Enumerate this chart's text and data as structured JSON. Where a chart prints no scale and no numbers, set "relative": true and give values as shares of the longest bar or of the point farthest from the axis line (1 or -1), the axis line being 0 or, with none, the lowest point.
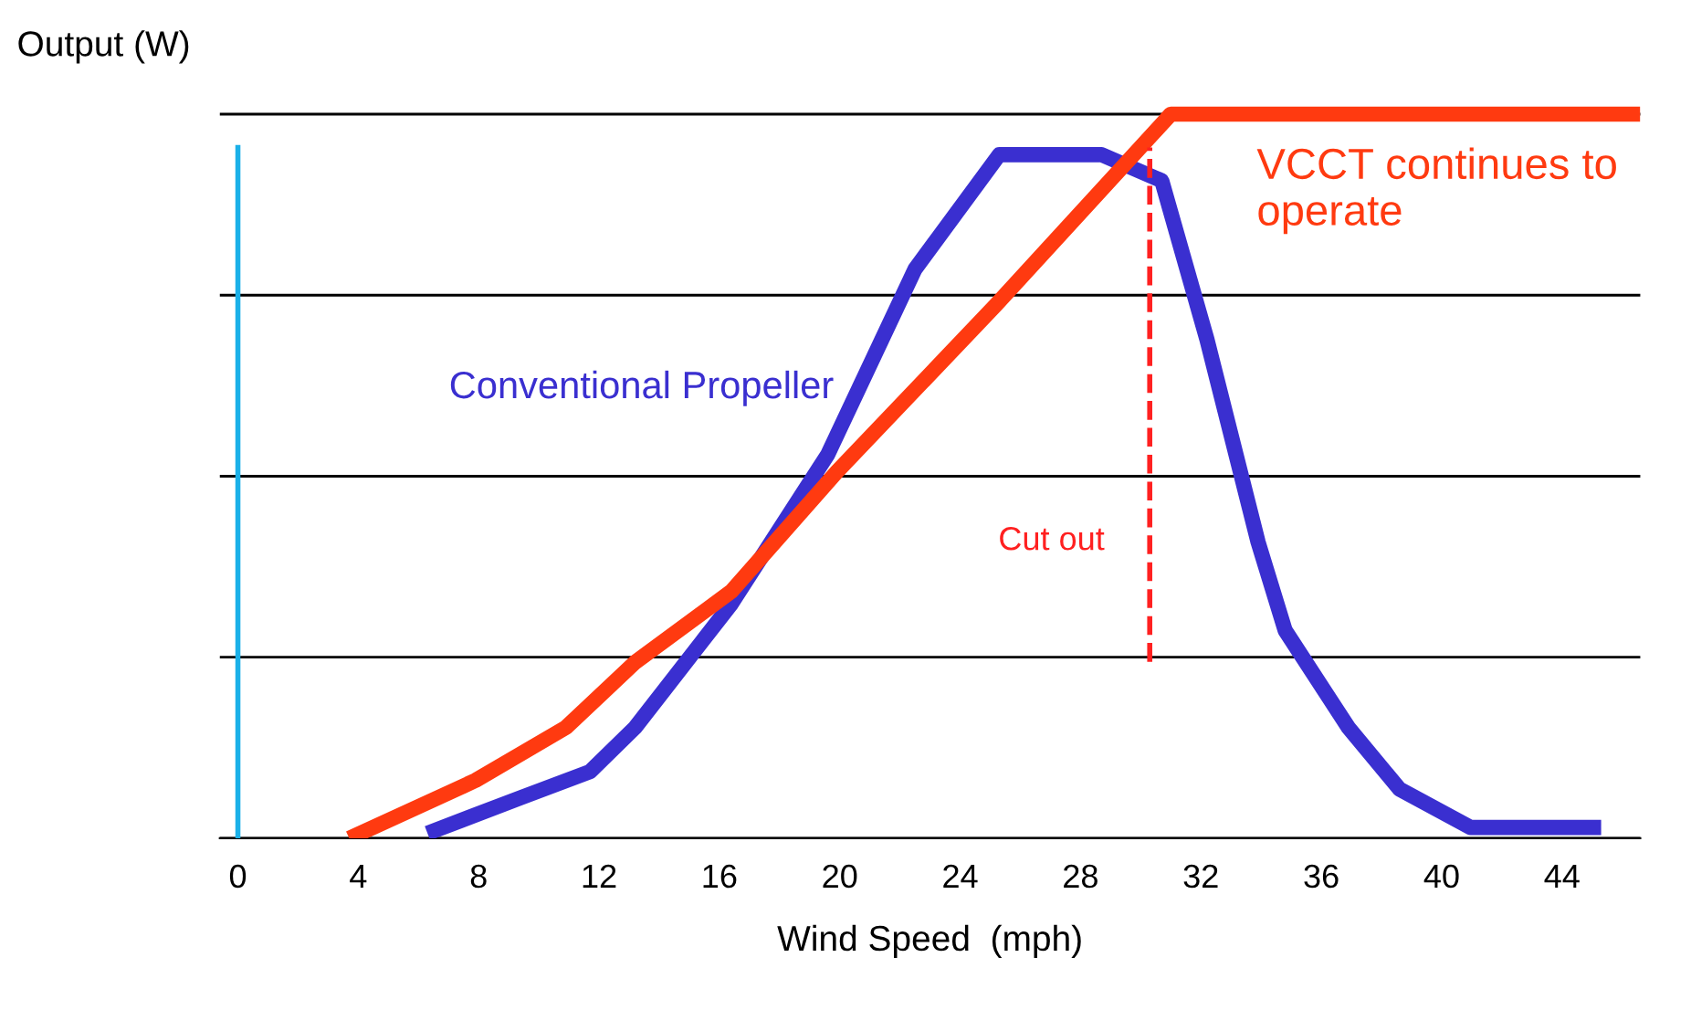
{
  "chart_data": {
    "type": "line",
    "relative": true,
    "xlabel": "Wind Speed  (mph)",
    "ylabel": "Output (W)",
    "xlim": [
      -0.6,
      46.6
    ],
    "xticks": [
      0,
      4,
      8,
      12,
      16,
      20,
      24,
      28,
      32,
      36,
      40,
      44
    ],
    "series": [
      {
        "name": "Conventional Propeller",
        "color": "#3a2fd0",
        "x": [
          6.3,
          9.4,
          11.7,
          13.2,
          16.4,
          19.6,
          22.5,
          25.3,
          28.7,
          30.7,
          32.2,
          33.9,
          34.8,
          36.9,
          38.6,
          40.96,
          45.3
        ],
        "values": [
          0.007,
          0.056,
          0.092,
          0.153,
          0.324,
          0.53,
          0.786,
          0.944,
          0.944,
          0.908,
          0.689,
          0.409,
          0.287,
          0.153,
          0.068,
          0.015,
          0.015
        ]
      },
      {
        "color": "#ff3a10",
        "x": [
          3.7,
          7.9,
          10.9,
          13.2,
          16.4,
          19.9,
          25.2,
          31.0,
          46.6
        ],
        "values": [
          0,
          0.08,
          0.153,
          0.243,
          0.341,
          0.506,
          0.737,
          1,
          1
        ]
      }
    ],
    "ref_lines": [
      {
        "axis": "x",
        "value": 0,
        "color": "#1ab0e8",
        "line_style": "solid"
      },
      {
        "axis": "x",
        "value": 30.3,
        "label": "Cut out",
        "color": "#ff2020",
        "line_style": "dashed"
      }
    ],
    "annotations": [
      "VCCT continues to operate"
    ],
    "grid": "y",
    "line_style": "solid",
    "marker": "none"
  }
}
